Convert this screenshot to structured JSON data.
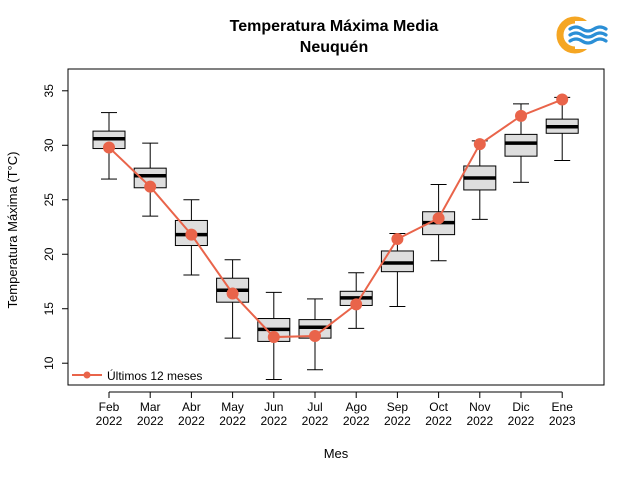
{
  "chart_data": {
    "type": "box",
    "title": "Temperatura Máxima Media",
    "subtitle": "Neuquén",
    "xlabel": "Mes",
    "ylabel": "Temperatura Máxima (T°C)",
    "ylim": [
      8,
      37
    ],
    "yticks": [
      10,
      15,
      20,
      25,
      30,
      35
    ],
    "grid": false,
    "legend_position": "bottom-left",
    "categories": [
      {
        "month": "Feb",
        "year": "2022"
      },
      {
        "month": "Mar",
        "year": "2022"
      },
      {
        "month": "Abr",
        "year": "2022"
      },
      {
        "month": "May",
        "year": "2022"
      },
      {
        "month": "Jun",
        "year": "2022"
      },
      {
        "month": "Jul",
        "year": "2022"
      },
      {
        "month": "Ago",
        "year": "2022"
      },
      {
        "month": "Sep",
        "year": "2022"
      },
      {
        "month": "Oct",
        "year": "2022"
      },
      {
        "month": "Nov",
        "year": "2022"
      },
      {
        "month": "Dic",
        "year": "2022"
      },
      {
        "month": "Ene",
        "year": "2023"
      }
    ],
    "boxes": [
      {
        "min": 26.9,
        "q1": 29.7,
        "median": 30.6,
        "q3": 31.3,
        "max": 33.0
      },
      {
        "min": 23.5,
        "q1": 26.1,
        "median": 27.2,
        "q3": 27.9,
        "max": 30.2
      },
      {
        "min": 18.1,
        "q1": 20.8,
        "median": 21.8,
        "q3": 23.1,
        "max": 25.0
      },
      {
        "min": 12.3,
        "q1": 15.6,
        "median": 16.7,
        "q3": 17.8,
        "max": 19.5
      },
      {
        "min": 8.5,
        "q1": 12.0,
        "median": 13.1,
        "q3": 14.1,
        "max": 16.5
      },
      {
        "min": 9.4,
        "q1": 12.3,
        "median": 13.3,
        "q3": 14.0,
        "max": 15.9
      },
      {
        "min": 13.2,
        "q1": 15.3,
        "median": 16.0,
        "q3": 16.6,
        "max": 18.3
      },
      {
        "min": 15.2,
        "q1": 18.4,
        "median": 19.2,
        "q3": 20.3,
        "max": 21.9
      },
      {
        "min": 19.4,
        "q1": 21.8,
        "median": 22.9,
        "q3": 23.9,
        "max": 26.4
      },
      {
        "min": 23.2,
        "q1": 25.9,
        "median": 27.0,
        "q3": 28.1,
        "max": 30.4
      },
      {
        "min": 26.6,
        "q1": 29.0,
        "median": 30.2,
        "q3": 31.0,
        "max": 33.8
      },
      {
        "min": 28.6,
        "q1": 31.1,
        "median": 31.7,
        "q3": 32.4,
        "max": 34.4
      }
    ],
    "series": [
      {
        "name": "Últimos 12 meses",
        "color": "#e9644a",
        "values": [
          29.8,
          26.2,
          21.8,
          16.4,
          12.4,
          12.5,
          15.4,
          21.4,
          23.3,
          30.1,
          32.7,
          34.2
        ]
      }
    ],
    "box_fill": "#dedede",
    "logo_colors": [
      "#f5a623",
      "#2b8fd6"
    ]
  }
}
